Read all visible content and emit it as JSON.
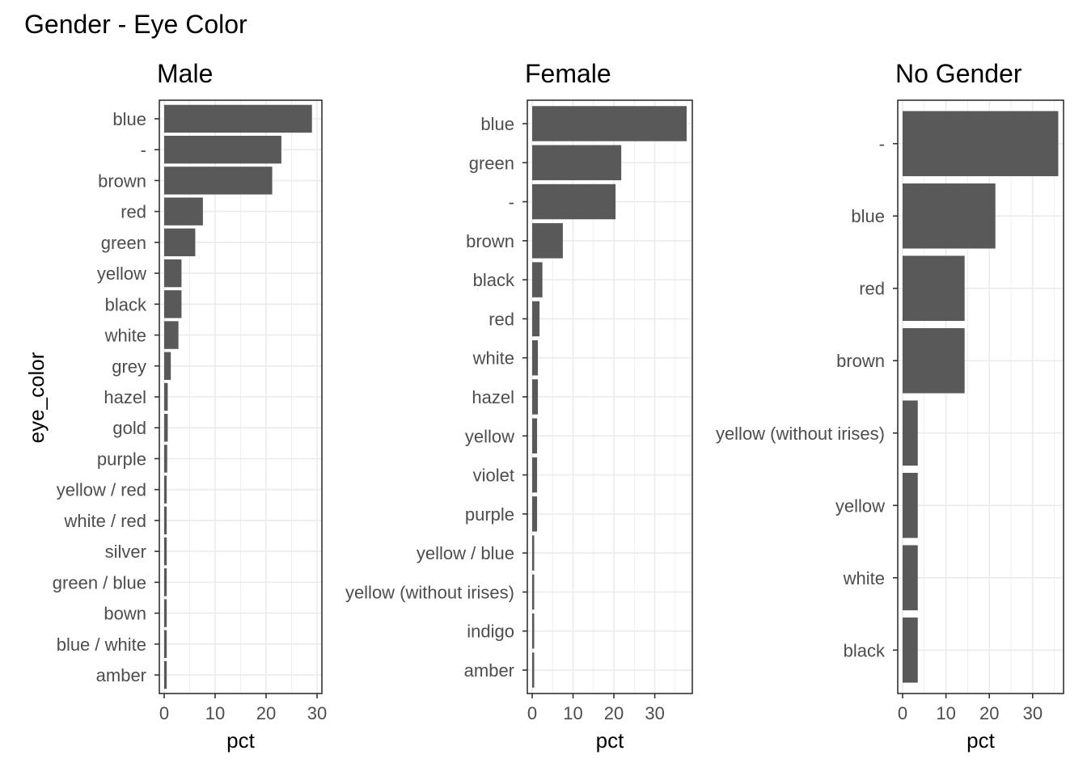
{
  "chart_data": {
    "type": "bar",
    "orientation": "horizontal",
    "title": "Gender - Eye Color",
    "ylabel": "eye_color",
    "grid": true,
    "colors": {
      "bar": "#595959",
      "grid": "#ebebeb",
      "panel_border": "#333333"
    },
    "facets": [
      {
        "title": "Male",
        "xlabel": "pct",
        "xlim": [
          0,
          30
        ],
        "xticks": [
          0,
          10,
          20,
          30
        ],
        "categories": [
          "blue",
          "-",
          "brown",
          "red",
          "green",
          "yellow",
          "black",
          "white",
          "grey",
          "hazel",
          "gold",
          "purple",
          "yellow / red",
          "white / red",
          "silver",
          "green / blue",
          "bown",
          "blue / white",
          "amber"
        ],
        "values": [
          29.0,
          23.0,
          21.2,
          7.6,
          6.1,
          3.4,
          3.4,
          2.8,
          1.3,
          0.7,
          0.7,
          0.6,
          0.5,
          0.5,
          0.5,
          0.5,
          0.5,
          0.5,
          0.5
        ]
      },
      {
        "title": "Female",
        "xlabel": "pct",
        "xlim": [
          0,
          38
        ],
        "xticks": [
          0,
          10,
          20,
          30
        ],
        "categories": [
          "blue",
          "green",
          "-",
          "brown",
          "black",
          "red",
          "white",
          "hazel",
          "yellow",
          "violet",
          "purple",
          "yellow / blue",
          "yellow (without irises)",
          "indigo",
          "amber"
        ],
        "values": [
          37.8,
          21.8,
          20.4,
          7.5,
          2.5,
          1.8,
          1.4,
          1.4,
          1.2,
          1.2,
          1.2,
          0.5,
          0.5,
          0.5,
          0.5
        ]
      },
      {
        "title": "No Gender",
        "xlabel": "pct",
        "xlim": [
          0,
          36
        ],
        "xticks": [
          0,
          10,
          20,
          30
        ],
        "categories": [
          "-",
          "blue",
          "red",
          "brown",
          "yellow (without irises)",
          "yellow",
          "white",
          "black"
        ],
        "values": [
          35.9,
          21.4,
          14.3,
          14.3,
          3.5,
          3.5,
          3.5,
          3.5
        ]
      }
    ]
  }
}
